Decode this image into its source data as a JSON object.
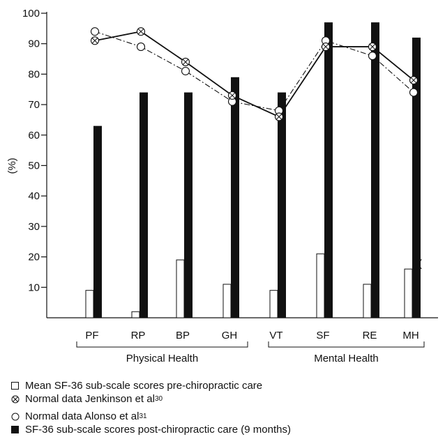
{
  "chart_data": {
    "type": "bar",
    "ylabel": "(%)",
    "ylim": [
      0,
      100
    ],
    "yticks": [
      "10",
      "20",
      "30",
      "40",
      "50",
      "60",
      "70",
      "80",
      "90",
      "100"
    ],
    "categories": [
      "PF",
      "RP",
      "BP",
      "GH",
      "VT",
      "SF",
      "RE",
      "MH"
    ],
    "groups": [
      {
        "label": "Physical Health",
        "categories": [
          "PF",
          "RP",
          "BP",
          "GH"
        ]
      },
      {
        "label": "Mental Health",
        "categories": [
          "VT",
          "SF",
          "RE",
          "MH"
        ]
      }
    ],
    "series": [
      {
        "name": "Mean SF-36 sub-scale scores pre-chiropractic care",
        "kind": "bar",
        "fill": "#ffffff",
        "values": [
          9,
          2,
          19,
          11,
          9,
          21,
          11,
          16
        ]
      },
      {
        "name": "SF-36 sub-scale scores post-chiropractic care (9 months)",
        "kind": "bar",
        "fill": "#111111",
        "values": [
          63,
          74,
          74,
          79,
          74,
          97,
          97,
          92
        ]
      },
      {
        "name": "Normal data Jenkinson et al",
        "superscript": "30",
        "kind": "line",
        "marker": "circle-x",
        "dash": "solid",
        "values": [
          91,
          94,
          84,
          73,
          66,
          89,
          89,
          78
        ]
      },
      {
        "name": "Normal data Alonso et al",
        "superscript": "31",
        "kind": "line",
        "marker": "circle-open",
        "dash": "dashdot",
        "values": [
          94,
          89,
          81,
          71,
          68,
          91,
          86,
          74
        ]
      }
    ],
    "stray_mark": "("
  },
  "legend": [
    {
      "symbol": "open-square",
      "text": "Mean SF-36 sub-scale scores pre-chiropractic care",
      "sup": ""
    },
    {
      "symbol": "circle-x",
      "text": "Normal data Jenkinson et al",
      "sup": "30"
    },
    {
      "symbol": "open-circle",
      "text": "Normal data Alonso et al",
      "sup": "31"
    },
    {
      "symbol": "filled-square",
      "text": "SF-36 sub-scale scores post-chiropractic care (9 months)",
      "sup": ""
    }
  ]
}
